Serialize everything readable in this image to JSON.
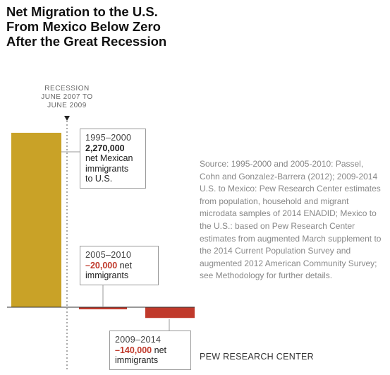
{
  "chart_data": {
    "type": "bar",
    "title": "Net Migration to the U.S. From Mexico Below Zero After the Great Recession",
    "categories": [
      "1995–2000",
      "2005–2010",
      "2009–2014"
    ],
    "values": [
      2270000,
      -20000,
      -140000
    ],
    "colors": [
      "#C9A227",
      "#C0392B",
      "#C0392B"
    ],
    "recession_marker": {
      "label_lines": [
        "RECESSION",
        "JUNE 2007 TO",
        "JUNE 2009"
      ],
      "position_between_categories": [
        0,
        1
      ]
    },
    "annotations": [
      {
        "period": "1995–2000",
        "value_text": "2,270,000",
        "rest": [
          "net Mexican",
          "immigrants",
          "to U.S."
        ]
      },
      {
        "period": "2005–2010",
        "value_text": "–20,000",
        "suffix": "net",
        "rest": [
          "immigrants"
        ]
      },
      {
        "period": "2009–2014",
        "value_text": "–140,000",
        "suffix": "net",
        "rest": [
          "immigrants"
        ]
      }
    ],
    "grid": false,
    "axes_visible": false
  },
  "source_note": "Source: 1995-2000 and 2005-2010: Passel, Cohn and Gonzalez-Barrera (2012); 2009-2014 U.S. to Mexico: Pew Research Center estimates from population, household and migrant microdata samples of 2014 ENADID; Mexico to the U.S.: based on Pew Research Center estimates from augmented March supplement to the 2014 Current Population Survey and augmented 2012 American Community Survey; see Methodology for further details.",
  "credit": "PEW RESEARCH CENTER"
}
